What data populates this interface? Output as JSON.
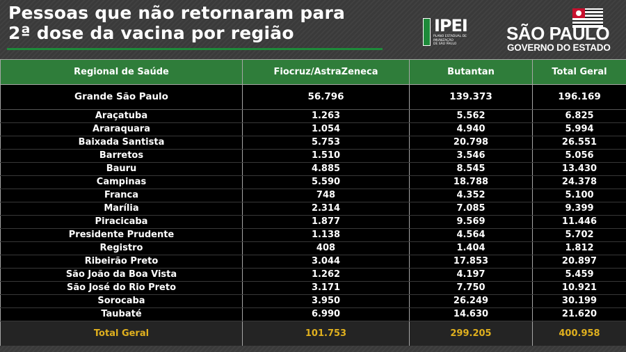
{
  "title": {
    "line1": "Pessoas que não retornaram para",
    "line2": "2ª dose da vacina por região"
  },
  "logos": {
    "ipei": {
      "word": "IPEI",
      "sub_lines": [
        "Plano Estadual de",
        "Imunização",
        "de São Paulo"
      ]
    },
    "sao_paulo": {
      "name": "SÃO PAULO",
      "subtitle": "GOVERNO DO ESTADO"
    }
  },
  "table": {
    "headers": [
      "Regional de Saúde",
      "Fiocruz/AstraZeneca",
      "Butantan",
      "Total Geral"
    ],
    "rows": [
      [
        "Grande São Paulo",
        "56.796",
        "139.373",
        "196.169"
      ],
      [
        "Araçatuba",
        "1.263",
        "5.562",
        "6.825"
      ],
      [
        "Araraquara",
        "1.054",
        "4.940",
        "5.994"
      ],
      [
        "Baixada Santista",
        "5.753",
        "20.798",
        "26.551"
      ],
      [
        "Barretos",
        "1.510",
        "3.546",
        "5.056"
      ],
      [
        "Bauru",
        "4.885",
        "8.545",
        "13.430"
      ],
      [
        "Campinas",
        "5.590",
        "18.788",
        "24.378"
      ],
      [
        "Franca",
        "748",
        "4.352",
        "5.100"
      ],
      [
        "Marília",
        "2.314",
        "7.085",
        "9.399"
      ],
      [
        "Piracicaba",
        "1.877",
        "9.569",
        "11.446"
      ],
      [
        "Presidente Prudente",
        "1.138",
        "4.564",
        "5.702"
      ],
      [
        "Registro",
        "408",
        "1.404",
        "1.812"
      ],
      [
        "Ribeirão Preto",
        "3.044",
        "17.853",
        "20.897"
      ],
      [
        "São João da Boa Vista",
        "1.262",
        "4.197",
        "5.459"
      ],
      [
        "São José do Rio Preto",
        "3.171",
        "7.750",
        "10.921"
      ],
      [
        "Sorocaba",
        "3.950",
        "26.249",
        "30.199"
      ],
      [
        "Taubaté",
        "6.990",
        "14.630",
        "21.620"
      ]
    ],
    "total": [
      "Total Geral",
      "101.753",
      "299.205",
      "400.958"
    ]
  },
  "colors": {
    "header_green": "#2f7d3a",
    "total_gold": "#e0b01e",
    "background": "#3a3a3a"
  }
}
